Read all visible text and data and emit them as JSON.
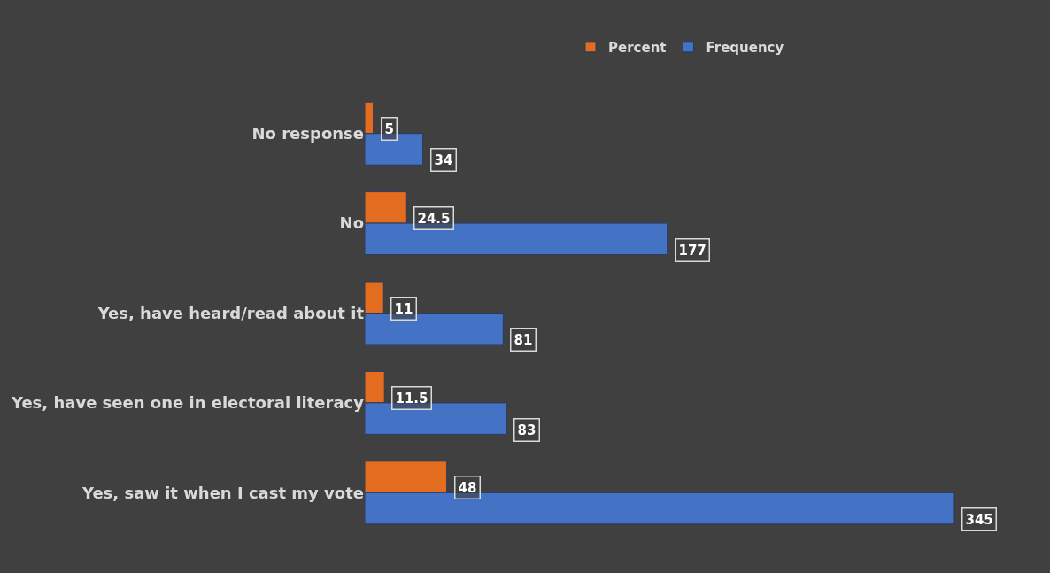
{
  "chart_data": {
    "type": "bar",
    "orientation": "horizontal",
    "categories": [
      "No response",
      "No",
      "Yes, have heard/read about it",
      "Yes, have seen one in electoral literacy",
      "Yes, saw it when I cast my vote"
    ],
    "series": [
      {
        "name": "Percent",
        "color": "#e46c1e",
        "values": [
          5,
          24.5,
          11,
          11.5,
          48
        ]
      },
      {
        "name": "Frequency",
        "color": "#4472c4",
        "values": [
          34,
          177,
          81,
          83,
          345
        ]
      }
    ],
    "data_labels": true,
    "legend": "top",
    "tick_labels": "y"
  }
}
